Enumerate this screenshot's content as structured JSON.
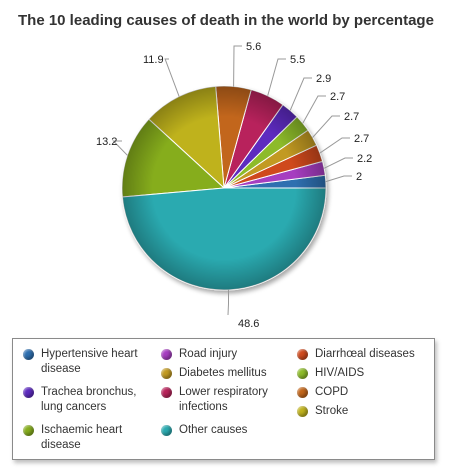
{
  "chart_data": {
    "type": "pie",
    "title": "The 10 leading causes of death in the world by percentage",
    "slices": [
      {
        "label": "Hypertensive heart disease",
        "value": 2,
        "color": "#2e6fb0"
      },
      {
        "label": "Road injury",
        "value": 2.2,
        "color": "#a63ec0"
      },
      {
        "label": "Diarrhœal diseases",
        "value": 2.7,
        "color": "#cf4a1e"
      },
      {
        "label": "Diabetes mellitus",
        "value": 2.7,
        "color": "#c29a21"
      },
      {
        "label": "HIV/AIDS",
        "value": 2.7,
        "color": "#8dbb2a"
      },
      {
        "label": "Trachea bronchus, lung cancers",
        "value": 2.9,
        "color": "#5d2bbf"
      },
      {
        "label": "Lower respiratory infections",
        "value": 5.5,
        "color": "#b8245b"
      },
      {
        "label": "COPD",
        "value": 5.6,
        "color": "#c2661b"
      },
      {
        "label": "Stroke",
        "value": 11.9,
        "color": "#bfb21e"
      },
      {
        "label": "Ischaemic heart disease",
        "value": 13.2,
        "color": "#86ad1e"
      },
      {
        "label": "Other causes",
        "value": 48.6,
        "color": "#2aaab0"
      }
    ],
    "value_labels": [
      "2",
      "2.2",
      "2.7",
      "2.7",
      "2.7",
      "2.9",
      "5.5",
      "5.6",
      "11.9",
      "13.2",
      "48.6"
    ],
    "legend": {
      "placement": "bottom",
      "columns": [
        [
          "Hypertensive heart disease",
          "Trachea bronchus, lung cancers",
          "Ischaemic heart disease"
        ],
        [
          "Road injury",
          "Diabetes mellitus",
          "Lower respiratory infections",
          "Other causes"
        ],
        [
          "Diarrhœal diseases",
          "HIV/AIDS",
          "COPD",
          "Stroke"
        ]
      ]
    }
  }
}
